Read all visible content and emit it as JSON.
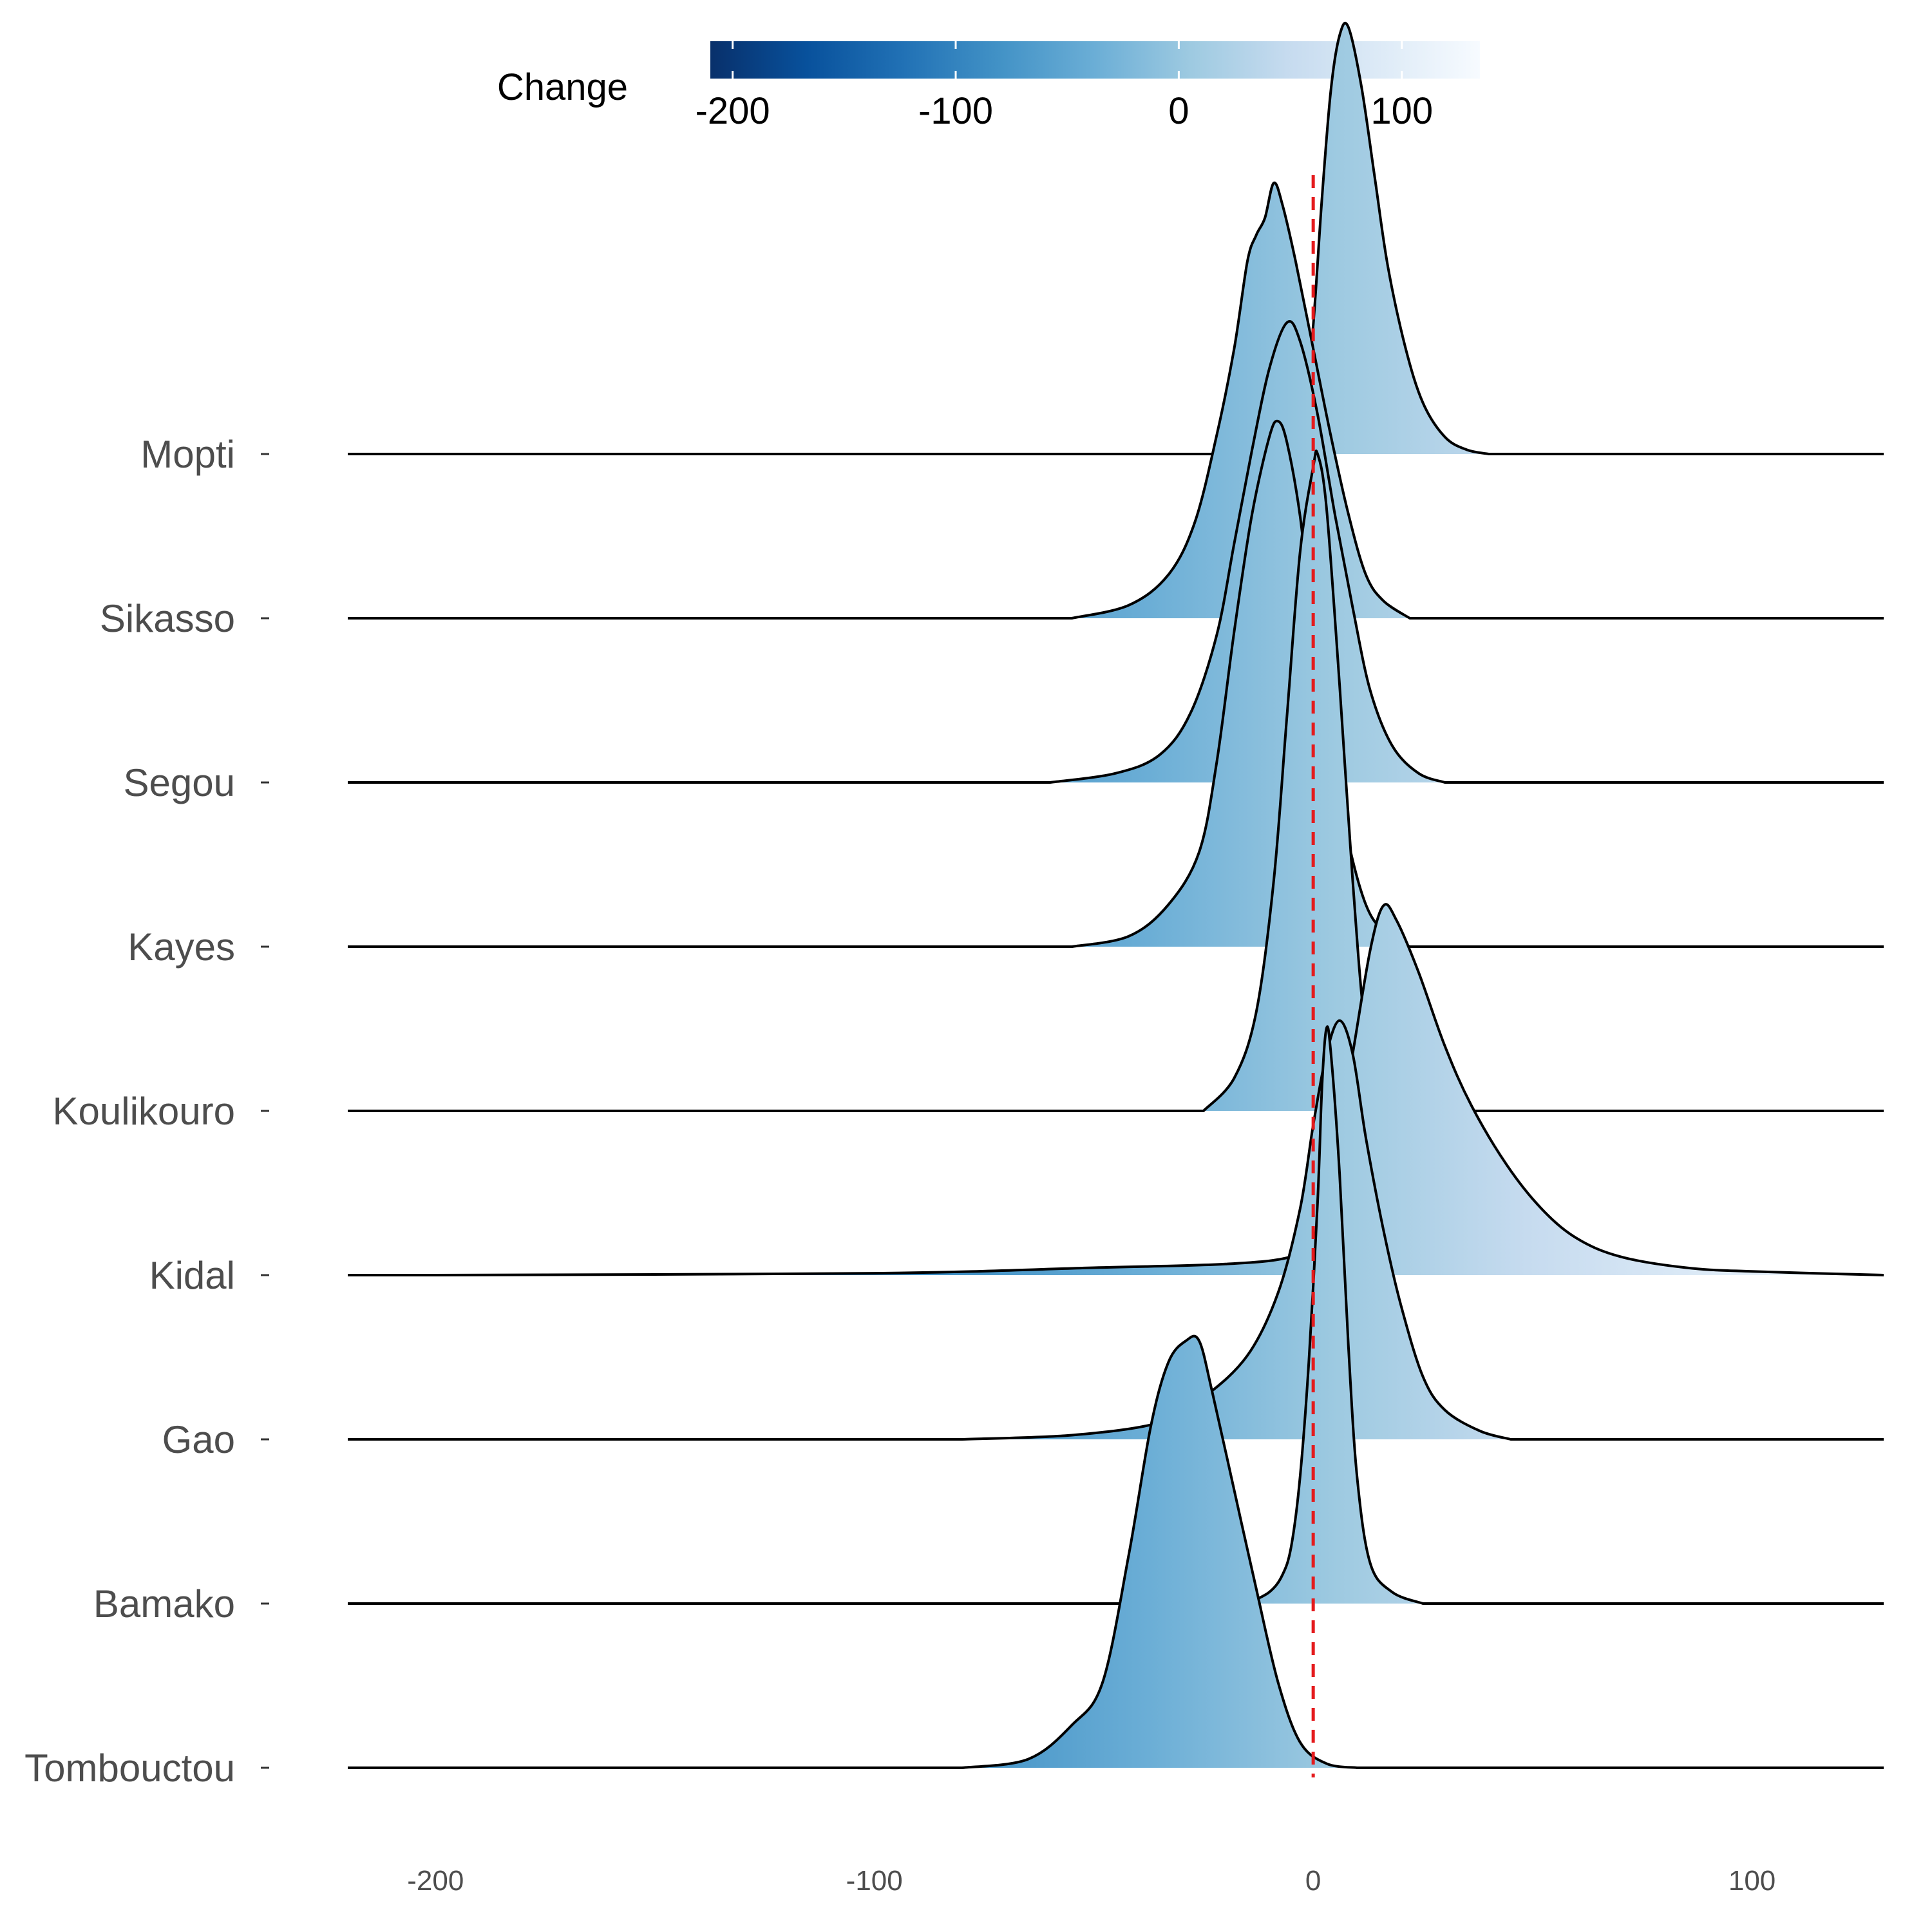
{
  "chart_data": {
    "type": "ridgeline",
    "title": "",
    "xlabel": "",
    "ylabel": "",
    "xlim": [
      -220,
      130
    ],
    "x_ticks": [
      -200,
      -100,
      0,
      100
    ],
    "x_tick_labels": [
      "-200",
      "-100",
      "0",
      "100"
    ],
    "reference_line": {
      "x": 0,
      "color": "#e41a1c",
      "style": "dashed"
    },
    "legend": {
      "title": "Change",
      "placement": "top",
      "range": [
        -210,
        135
      ],
      "ticks": [
        -200,
        -100,
        0,
        100
      ],
      "tick_labels": [
        "-200",
        "-100",
        "0",
        "100"
      ],
      "colors": [
        "#08306b",
        "#08519c",
        "#2171b5",
        "#4292c6",
        "#6baed6",
        "#9ecae1",
        "#c6dbef",
        "#deebf7",
        "#f7fbff"
      ]
    },
    "categories": [
      "Tombouctou",
      "Bamako",
      "Gao",
      "Kidal",
      "Koulikouro",
      "Kayes",
      "Segou",
      "Sikasso",
      "Mopti"
    ],
    "series": [
      {
        "name": "Tombouctou",
        "mode": -27,
        "peak_height": 2.6,
        "pts": [
          [
            -80,
            0
          ],
          [
            -65,
            0.02
          ],
          [
            -55,
            0.1
          ],
          [
            -48,
            0.2
          ],
          [
            -42,
            0.5
          ],
          [
            -37,
            0.8
          ],
          [
            -33,
            0.95
          ],
          [
            -29,
            1.0
          ],
          [
            -26,
            1.0
          ],
          [
            -23,
            0.88
          ],
          [
            -18,
            0.65
          ],
          [
            -13,
            0.42
          ],
          [
            -8,
            0.2
          ],
          [
            -3,
            0.06
          ],
          [
            3,
            0.01
          ],
          [
            10,
            0
          ]
        ]
      },
      {
        "name": "Bamako",
        "mode": 3,
        "peak_height": 3.5,
        "pts": [
          [
            -15,
            0
          ],
          [
            -10,
            0.02
          ],
          [
            -7,
            0.05
          ],
          [
            -5,
            0.1
          ],
          [
            -3,
            0.22
          ],
          [
            -1,
            0.42
          ],
          [
            1,
            0.7
          ],
          [
            2,
            0.9
          ],
          [
            3,
            1.0
          ],
          [
            4,
            0.96
          ],
          [
            6,
            0.75
          ],
          [
            8,
            0.45
          ],
          [
            10,
            0.22
          ],
          [
            13,
            0.07
          ],
          [
            18,
            0.02
          ],
          [
            25,
            0
          ]
        ]
      },
      {
        "name": "Gao",
        "mode": 6,
        "peak_height": 2.55,
        "pts": [
          [
            -80,
            0
          ],
          [
            -55,
            0.01
          ],
          [
            -35,
            0.04
          ],
          [
            -25,
            0.1
          ],
          [
            -15,
            0.2
          ],
          [
            -8,
            0.35
          ],
          [
            -3,
            0.55
          ],
          [
            0,
            0.75
          ],
          [
            3,
            0.92
          ],
          [
            6,
            1.0
          ],
          [
            9,
            0.92
          ],
          [
            12,
            0.72
          ],
          [
            16,
            0.5
          ],
          [
            20,
            0.32
          ],
          [
            25,
            0.15
          ],
          [
            30,
            0.07
          ],
          [
            38,
            0.02
          ],
          [
            45,
            0
          ]
        ]
      },
      {
        "name": "Kidal",
        "mode": 15,
        "peak_height": 2.25,
        "pts": [
          [
            -200,
            0
          ],
          [
            -100,
            0.005
          ],
          [
            -50,
            0.02
          ],
          [
            -20,
            0.03
          ],
          [
            -5,
            0.05
          ],
          [
            0,
            0.1
          ],
          [
            3,
            0.18
          ],
          [
            6,
            0.4
          ],
          [
            9,
            0.6
          ],
          [
            13,
            0.88
          ],
          [
            16,
            1.0
          ],
          [
            19,
            0.96
          ],
          [
            24,
            0.82
          ],
          [
            30,
            0.62
          ],
          [
            36,
            0.46
          ],
          [
            44,
            0.3
          ],
          [
            52,
            0.18
          ],
          [
            60,
            0.1
          ],
          [
            70,
            0.05
          ],
          [
            85,
            0.02
          ],
          [
            100,
            0.01
          ],
          [
            130,
            0
          ]
        ]
      },
      {
        "name": "Koulikouro",
        "mode": 1,
        "peak_height": 4.0,
        "pts": [
          [
            -25,
            0
          ],
          [
            -18,
            0.05
          ],
          [
            -13,
            0.15
          ],
          [
            -9,
            0.35
          ],
          [
            -6,
            0.6
          ],
          [
            -3,
            0.85
          ],
          [
            0,
            0.98
          ],
          [
            1,
            1.0
          ],
          [
            3,
            0.92
          ],
          [
            6,
            0.65
          ],
          [
            9,
            0.35
          ],
          [
            12,
            0.12
          ],
          [
            16,
            0.03
          ],
          [
            20,
            0
          ]
        ]
      },
      {
        "name": "Kayes",
        "mode": -8,
        "peak_height": 3.2,
        "pts": [
          [
            -55,
            0
          ],
          [
            -42,
            0.02
          ],
          [
            -33,
            0.08
          ],
          [
            -26,
            0.18
          ],
          [
            -22,
            0.35
          ],
          [
            -18,
            0.6
          ],
          [
            -14,
            0.82
          ],
          [
            -10,
            0.97
          ],
          [
            -8,
            1.0
          ],
          [
            -6,
            0.96
          ],
          [
            -3,
            0.82
          ],
          [
            0,
            0.6
          ],
          [
            4,
            0.38
          ],
          [
            8,
            0.2
          ],
          [
            12,
            0.08
          ],
          [
            16,
            0.03
          ],
          [
            22,
            0
          ]
        ]
      },
      {
        "name": "Segou",
        "mode": -6,
        "peak_height": 2.8,
        "pts": [
          [
            -60,
            0
          ],
          [
            -45,
            0.02
          ],
          [
            -35,
            0.06
          ],
          [
            -28,
            0.15
          ],
          [
            -22,
            0.32
          ],
          [
            -18,
            0.52
          ],
          [
            -14,
            0.72
          ],
          [
            -10,
            0.9
          ],
          [
            -6,
            1.0
          ],
          [
            -3,
            0.96
          ],
          [
            1,
            0.8
          ],
          [
            5,
            0.58
          ],
          [
            9,
            0.38
          ],
          [
            13,
            0.2
          ],
          [
            18,
            0.08
          ],
          [
            24,
            0.02
          ],
          [
            30,
            0
          ]
        ]
      },
      {
        "name": "Sikasso",
        "mode": -9,
        "peak_height": 2.65,
        "pts": [
          [
            -55,
            0
          ],
          [
            -42,
            0.03
          ],
          [
            -33,
            0.1
          ],
          [
            -27,
            0.22
          ],
          [
            -22,
            0.42
          ],
          [
            -18,
            0.62
          ],
          [
            -15,
            0.82
          ],
          [
            -13,
            0.88
          ],
          [
            -11,
            0.92
          ],
          [
            -9,
            1.0
          ],
          [
            -7,
            0.95
          ],
          [
            -4,
            0.82
          ],
          [
            0,
            0.62
          ],
          [
            4,
            0.42
          ],
          [
            8,
            0.24
          ],
          [
            12,
            0.1
          ],
          [
            16,
            0.04
          ],
          [
            22,
            0
          ]
        ]
      },
      {
        "name": "Mopti",
        "mode": 7,
        "peak_height": 2.6,
        "pts": [
          [
            -15,
            0
          ],
          [
            -5,
            0.02
          ],
          [
            -2,
            0.1
          ],
          [
            0,
            0.3
          ],
          [
            2,
            0.6
          ],
          [
            4,
            0.85
          ],
          [
            6,
            0.98
          ],
          [
            8,
            1.0
          ],
          [
            11,
            0.86
          ],
          [
            14,
            0.65
          ],
          [
            17,
            0.44
          ],
          [
            21,
            0.25
          ],
          [
            25,
            0.12
          ],
          [
            30,
            0.04
          ],
          [
            35,
            0.01
          ],
          [
            40,
            0
          ]
        ]
      }
    ]
  }
}
